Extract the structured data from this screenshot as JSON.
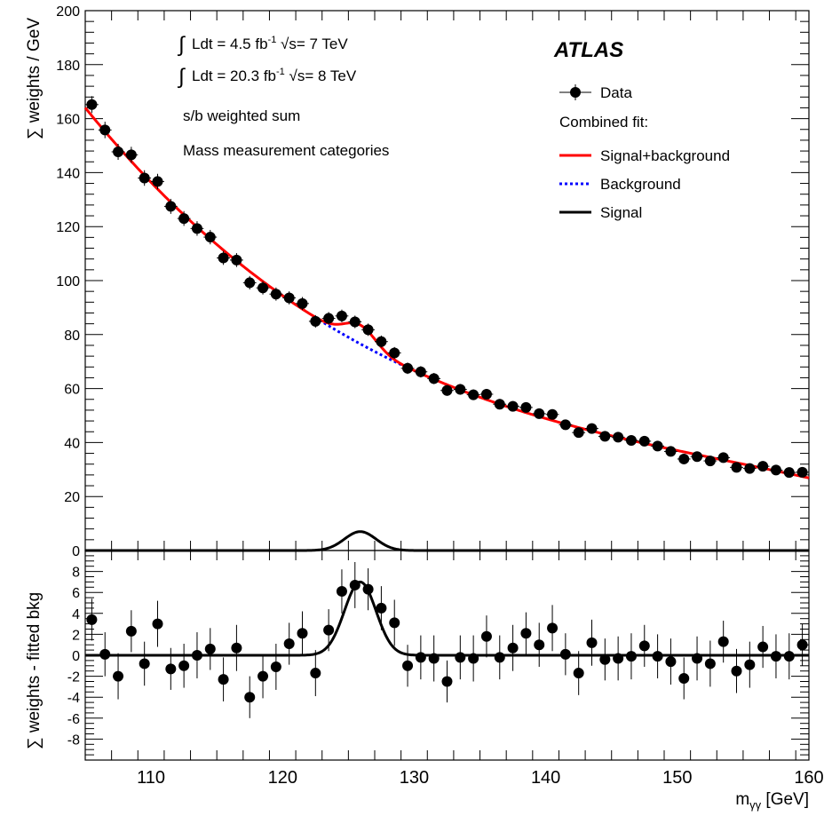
{
  "chart_data": [
    {
      "type": "scatter",
      "panel": "main",
      "ylabel": "∑ weights / GeV",
      "xlim": [
        105,
        160
      ],
      "ylim": [
        0,
        200
      ],
      "y_ticks": [
        0,
        20,
        40,
        60,
        80,
        100,
        120,
        140,
        160,
        180,
        200
      ],
      "annotations": [
        {
          "pre": "Ldt = 4.5 fb",
          "sup": "-1",
          "post": "s= 7 TeV"
        },
        {
          "pre": "Ldt = 20.3 fb",
          "sup": "-1",
          "post": "s= 8 TeV"
        },
        "s/b weighted sum",
        "Mass measurement categories"
      ],
      "experiment_label": "ATLAS",
      "legend": {
        "placement": "top-right",
        "data_label": "Data",
        "header": "Combined fit:",
        "entries": [
          {
            "label": "Signal+background",
            "color": "#ff0000",
            "style": "solid"
          },
          {
            "label": "Background",
            "color": "#0000ff",
            "style": "dotted"
          },
          {
            "label": "Signal",
            "color": "#000000",
            "style": "solid"
          }
        ]
      },
      "series": [
        {
          "name": "Data",
          "x": [
            105.5,
            106.5,
            107.5,
            108.5,
            109.5,
            110.5,
            111.5,
            112.5,
            113.5,
            114.5,
            115.5,
            116.5,
            117.5,
            118.5,
            119.5,
            120.5,
            121.5,
            122.5,
            123.5,
            124.5,
            125.5,
            126.5,
            127.5,
            128.5,
            129.5,
            130.5,
            131.5,
            132.5,
            133.5,
            134.5,
            135.5,
            136.5,
            137.5,
            138.5,
            139.5,
            140.5,
            141.5,
            142.5,
            143.5,
            144.5,
            145.5,
            146.5,
            147.5,
            148.5,
            149.5,
            150.5,
            151.5,
            152.5,
            153.5,
            154.5,
            155.5,
            156.5,
            157.5,
            158.5,
            159.5
          ],
          "y": [
            165.2,
            155.8,
            147.7,
            146.6,
            138.0,
            136.7,
            127.5,
            123.0,
            119.3,
            116.1,
            108.4,
            107.6,
            99.2,
            97.3,
            95.0,
            93.6,
            91.5,
            84.9,
            86.0,
            86.9,
            84.7,
            81.8,
            77.4,
            73.2,
            67.5,
            66.2,
            63.7,
            59.3,
            59.7,
            57.7,
            57.9,
            54.2,
            53.4,
            53.0,
            50.7,
            50.4,
            46.6,
            43.7,
            45.2,
            42.3,
            42.0,
            40.8,
            40.5,
            38.7,
            36.7,
            33.9,
            34.8,
            33.2,
            34.4,
            30.8,
            30.4,
            31.2,
            29.8,
            28.9,
            29.0
          ]
        }
      ],
      "fit": {
        "signal_peak_mass": 125.9,
        "signal_peak_height": 7.0,
        "signal_width": 1.2
      }
    },
    {
      "type": "scatter",
      "panel": "residual",
      "ylabel": "∑ weights - fitted bkg",
      "xlabel": "m",
      "xlabel_sub": "γγ",
      "xlabel_unit": "[GeV]",
      "xlim": [
        105,
        160
      ],
      "ylim": [
        -10,
        10
      ],
      "x_ticks": [
        110,
        120,
        130,
        140,
        150,
        160
      ],
      "y_ticks": [
        -8,
        -6,
        -4,
        -2,
        0,
        2,
        4,
        6,
        8
      ],
      "series": [
        {
          "name": "Data",
          "x": [
            105.5,
            106.5,
            107.5,
            108.5,
            109.5,
            110.5,
            111.5,
            112.5,
            113.5,
            114.5,
            115.5,
            116.5,
            117.5,
            118.5,
            119.5,
            120.5,
            121.5,
            122.5,
            123.5,
            124.5,
            125.5,
            126.5,
            127.5,
            128.5,
            129.5,
            130.5,
            131.5,
            132.5,
            133.5,
            134.5,
            135.5,
            136.5,
            137.5,
            138.5,
            139.5,
            140.5,
            141.5,
            142.5,
            143.5,
            144.5,
            145.5,
            146.5,
            147.5,
            148.5,
            149.5,
            150.5,
            151.5,
            152.5,
            153.5,
            154.5,
            155.5,
            156.5,
            157.5,
            158.5,
            159.5
          ],
          "y": [
            3.4,
            0.1,
            -2.0,
            2.3,
            -0.8,
            3.0,
            -1.3,
            -1.0,
            0.0,
            0.6,
            -2.3,
            0.7,
            -4.0,
            -2.0,
            -1.1,
            1.1,
            2.1,
            -1.7,
            2.4,
            6.1,
            6.7,
            6.3,
            4.5,
            3.1,
            -1.0,
            -0.2,
            -0.3,
            -2.5,
            -0.2,
            -0.3,
            1.8,
            -0.2,
            0.7,
            2.1,
            1.0,
            2.6,
            0.1,
            -1.7,
            1.2,
            -0.4,
            -0.3,
            -0.1,
            0.9,
            -0.1,
            -0.6,
            -2.2,
            -0.3,
            -0.8,
            1.3,
            -1.5,
            -0.9,
            0.8,
            -0.1,
            -0.1,
            1.0
          ]
        }
      ]
    }
  ]
}
